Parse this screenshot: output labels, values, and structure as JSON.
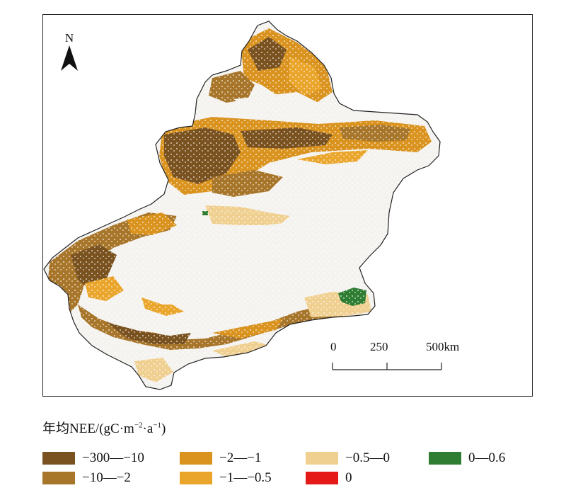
{
  "map": {
    "north_label": "N",
    "colors": {
      "background": "#f5f3f0",
      "outline": "#222222",
      "dark_brown": "#7a5220",
      "brown": "#a8762a",
      "orange": "#d9931e",
      "amber": "#eaa62c",
      "tan": "#f0d090",
      "red": "#e61919",
      "green": "#2e7d32"
    }
  },
  "scale": {
    "labels": [
      "0",
      "250",
      "500km"
    ]
  },
  "legend": {
    "title_main": "年均NEE/(gC·m",
    "title_sup1": "−2",
    "title_mid": "·a",
    "title_sup2": "−1",
    "title_end": ")",
    "items": [
      {
        "label": "−300—−10",
        "color": "#7a5220"
      },
      {
        "label": "−10—−2",
        "color": "#a8762a"
      },
      {
        "label": "−2—−1",
        "color": "#d9931e"
      },
      {
        "label": "−1—−0.5",
        "color": "#eaa62c"
      },
      {
        "label": "−0.5—0",
        "color": "#f0d090"
      },
      {
        "label": "0",
        "color": "#e61919"
      },
      {
        "label": "0—0.6",
        "color": "#2e7d32"
      }
    ]
  }
}
